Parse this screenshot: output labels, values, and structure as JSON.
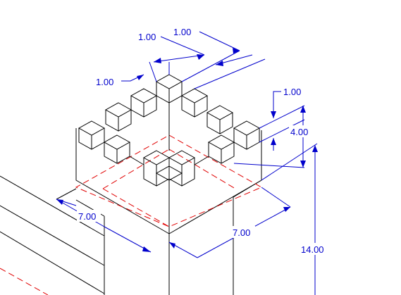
{
  "colors": {
    "background": "#ffffff",
    "object_line": "#000000",
    "dimension": "#0000cc",
    "hidden_line": "#e00000"
  },
  "dimensions": {
    "top_step_a": "1.00",
    "top_step_b": "1.00",
    "step_depth_left": "1.00",
    "step_depth_right": "1.00",
    "step_height": "4.00",
    "base_left": "7.00",
    "base_right": "7.00",
    "total_height": "14.00"
  }
}
